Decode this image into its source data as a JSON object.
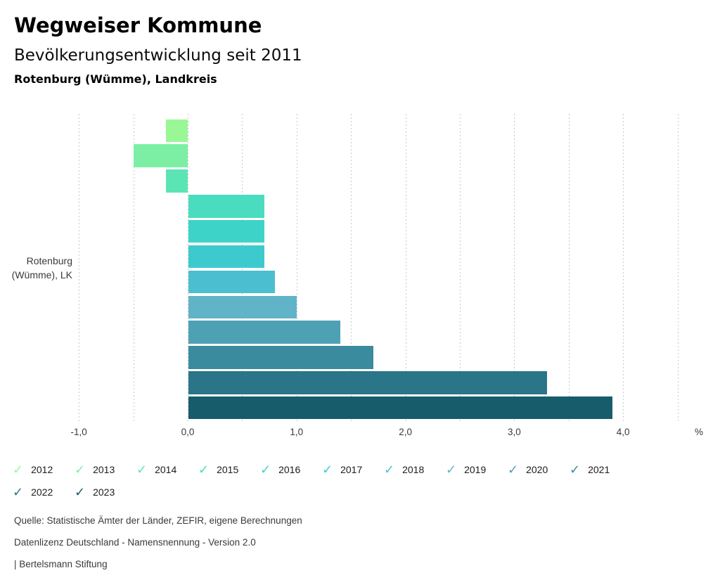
{
  "header": {
    "title": "Wegweiser Kommune",
    "subtitle": "Bevölkerungsentwicklung seit 2011",
    "region": "Rotenburg (Wümme), Landkreis"
  },
  "chart_data": {
    "type": "bar",
    "orientation": "horizontal",
    "title": "Bevölkerungsentwicklung seit 2011",
    "category_label": [
      "Rotenburg",
      "(Wümme), LK"
    ],
    "unit": "%",
    "xlim": [
      -1.0,
      4.5
    ],
    "grid_step": 0.5,
    "grid": "vertical-dashed",
    "legend_position": "bottom",
    "x_ticks": [
      {
        "value": -1,
        "label": "-1,0"
      },
      {
        "value": 0,
        "label": "0,0"
      },
      {
        "value": 1,
        "label": "1,0"
      },
      {
        "value": 2,
        "label": "2,0"
      },
      {
        "value": 3,
        "label": "3,0"
      },
      {
        "value": 4,
        "label": "4,0"
      }
    ],
    "series": [
      {
        "year": "2012",
        "value": -0.2,
        "color": "#99F795"
      },
      {
        "year": "2013",
        "value": -0.5,
        "color": "#7DEFA4"
      },
      {
        "year": "2014",
        "value": -0.2,
        "color": "#5CE5B4"
      },
      {
        "year": "2015",
        "value": 0.7,
        "color": "#4ADCBE"
      },
      {
        "year": "2016",
        "value": 0.7,
        "color": "#3ED3C8"
      },
      {
        "year": "2017",
        "value": 0.7,
        "color": "#3DCACF"
      },
      {
        "year": "2018",
        "value": 0.8,
        "color": "#4BBFCF"
      },
      {
        "year": "2019",
        "value": 1.0,
        "color": "#61B4C8"
      },
      {
        "year": "2020",
        "value": 1.4,
        "color": "#4EA0B3"
      },
      {
        "year": "2021",
        "value": 1.7,
        "color": "#3A8B9E"
      },
      {
        "year": "2022",
        "value": 3.3,
        "color": "#2A7587"
      },
      {
        "year": "2023",
        "value": 3.9,
        "color": "#175C6B"
      }
    ]
  },
  "footer": {
    "source": "Quelle: Statistische Ämter der Länder, ZEFIR, eigene Berechnungen",
    "license": "Datenlizenz Deutschland - Namensnennung - Version 2.0",
    "attribution": "| Bertelsmann Stiftung"
  }
}
